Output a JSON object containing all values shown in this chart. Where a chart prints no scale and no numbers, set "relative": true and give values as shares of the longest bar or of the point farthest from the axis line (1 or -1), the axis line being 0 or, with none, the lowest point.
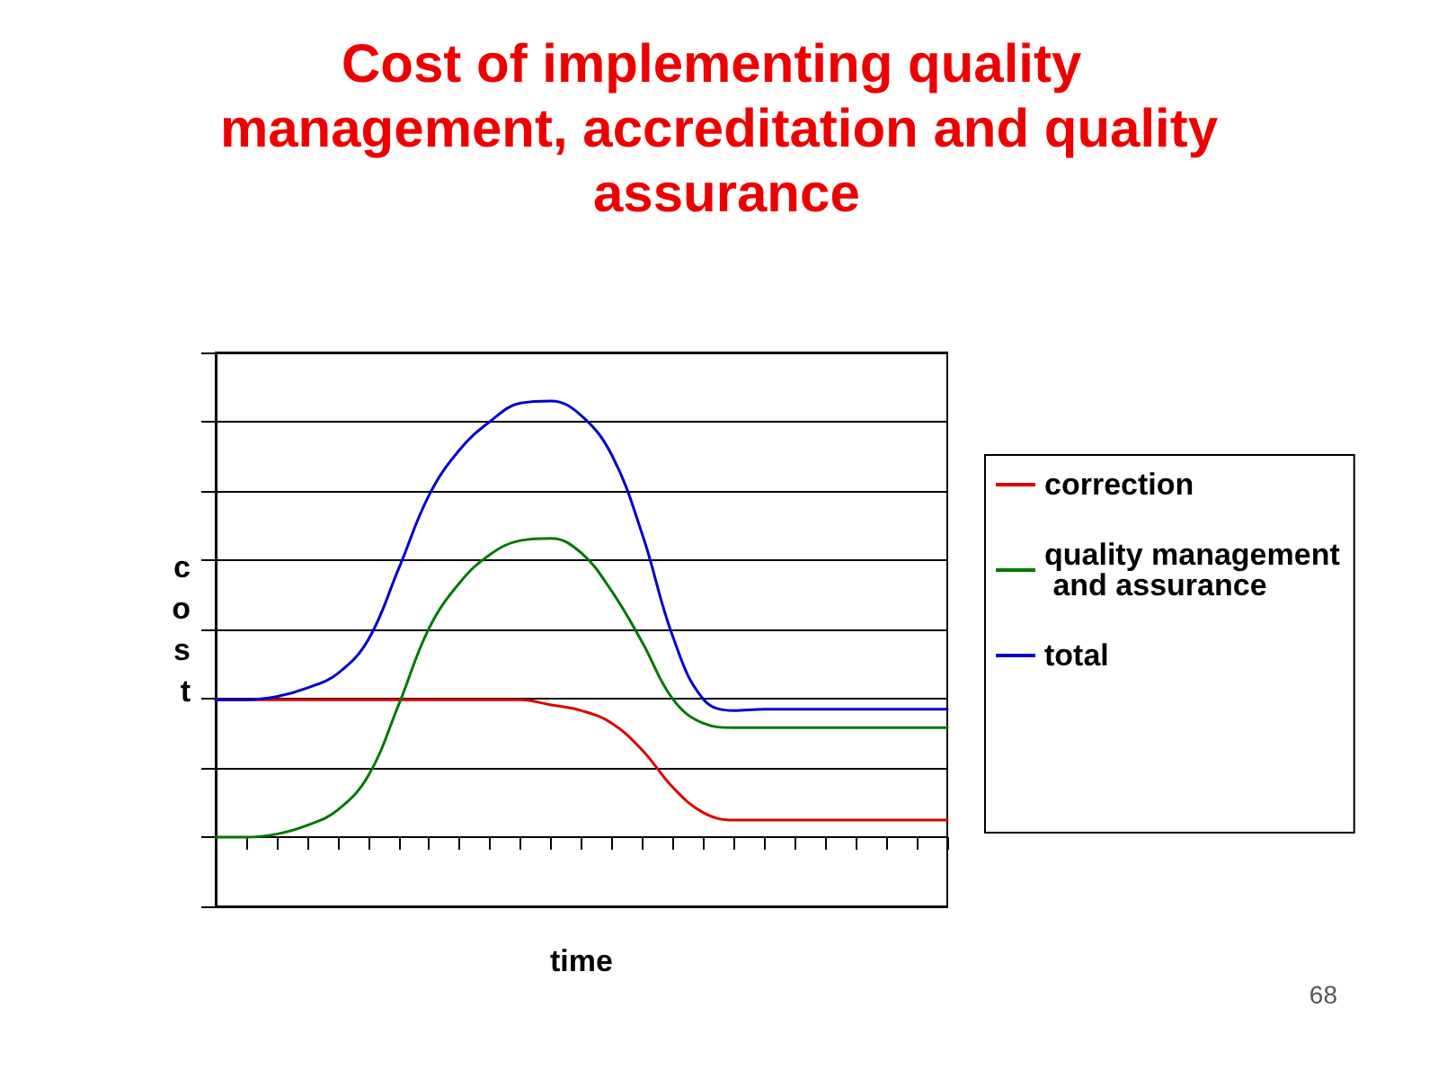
{
  "chart_data": {
    "type": "line",
    "title": "Cost of implementing quality management, accreditation and quality assurance",
    "xlabel": "time",
    "ylabel": "cost",
    "relative": true,
    "grid": "y",
    "legend": "right",
    "marker": "none",
    "line_style": "solid",
    "categories": [
      null,
      null,
      null,
      null,
      null,
      null,
      null,
      null,
      null,
      null,
      null,
      null,
      null,
      null,
      null,
      null,
      null,
      null,
      null,
      null,
      null,
      null,
      null,
      null,
      null
    ],
    "series": [
      {
        "name": "correction",
        "color": "#dd0000",
        "values": [
          0.315,
          0.315,
          0.315,
          0.315,
          0.315,
          0.315,
          0.315,
          0.315,
          0.315,
          0.315,
          0.315,
          0.303,
          0.29,
          0.261,
          0.199,
          0.114,
          0.056,
          0.039,
          0.039,
          0.039,
          0.039,
          0.039,
          0.039,
          0.039,
          0.039
        ]
      },
      {
        "name": "quality management and assurance",
        "color": "#007700",
        "values": [
          0,
          0,
          0.007,
          0.027,
          0.062,
          0.14,
          0.303,
          0.479,
          0.583,
          0.648,
          0.68,
          0.685,
          0.651,
          0.563,
          0.446,
          0.316,
          0.261,
          0.251,
          0.251,
          0.251,
          0.251,
          0.251,
          0.251,
          0.251,
          0.251
        ]
      },
      {
        "name": "total",
        "color": "#0000cc",
        "values": [
          0.315,
          0.315,
          0.322,
          0.342,
          0.375,
          0.452,
          0.615,
          0.784,
          0.888,
          0.953,
          0.995,
          1,
          0.966,
          0.875,
          0.693,
          0.459,
          0.316,
          0.29,
          0.293,
          0.293,
          0.293,
          0.293,
          0.293,
          0.293,
          0.293
        ]
      }
    ],
    "annotations": [
      "68"
    ]
  }
}
